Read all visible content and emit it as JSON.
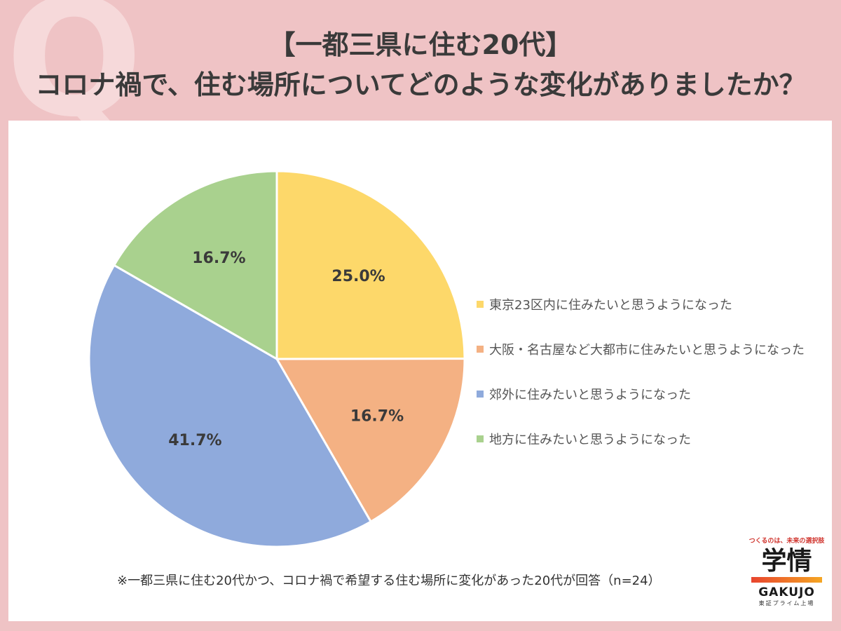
{
  "header": {
    "watermark": "Q",
    "title_line1": "【一都三県に住む20代】",
    "title_line2": "コロナ禍で、住む場所についてどのような変化がありましたか？"
  },
  "chart_data": {
    "type": "pie",
    "slices": [
      {
        "label": "東京23区内に住みたいと思うようになった",
        "value": 25.0,
        "display": "25.0%",
        "color": "#fdd86a"
      },
      {
        "label": "大阪・名古屋など大都市に住みたいと思うようになった",
        "value": 16.7,
        "display": "16.7%",
        "color": "#f4b183"
      },
      {
        "label": "郊外に住みたいと思うようになった",
        "value": 41.7,
        "display": "41.7%",
        "color": "#8faadc"
      },
      {
        "label": "地方に住みたいと思うようになった",
        "value": 16.7,
        "display": "16.7%",
        "color": "#a9d18e"
      }
    ],
    "legend_position": "right"
  },
  "footnote": "※一都三県に住む20代かつ、コロナ禍で希望する住む場所に変化があった20代が回答（n=24）",
  "logo": {
    "tagline": "つくるのは、未来の選択肢",
    "kanji": "学情",
    "brand": "GAKUJO",
    "sub": "東証プライム上場"
  }
}
